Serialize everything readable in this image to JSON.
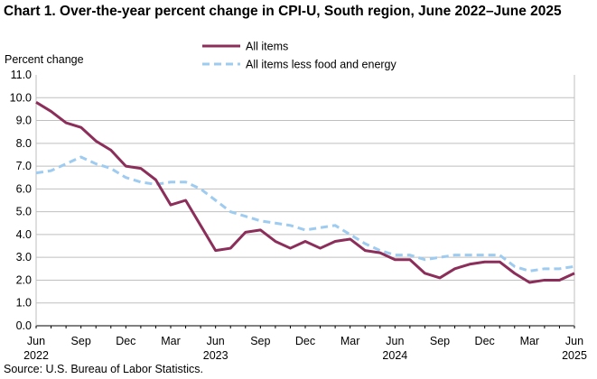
{
  "chart_data": {
    "type": "line",
    "title": "Chart 1. Over-the-year percent change in CPI-U, South region, June 2022–June 2025",
    "ylabel": "Percent change",
    "xlabel": "",
    "ylim": [
      0.0,
      11.0
    ],
    "yticks": [
      "0.0",
      "1.0",
      "2.0",
      "3.0",
      "4.0",
      "5.0",
      "6.0",
      "7.0",
      "8.0",
      "9.0",
      "10.0",
      "11.0"
    ],
    "grid": true,
    "legend_position": "top-center",
    "x": [
      "2022-06",
      "2022-07",
      "2022-08",
      "2022-09",
      "2022-10",
      "2022-11",
      "2022-12",
      "2023-01",
      "2023-02",
      "2023-03",
      "2023-04",
      "2023-05",
      "2023-06",
      "2023-07",
      "2023-08",
      "2023-09",
      "2023-10",
      "2023-11",
      "2023-12",
      "2024-01",
      "2024-02",
      "2024-03",
      "2024-04",
      "2024-05",
      "2024-06",
      "2024-07",
      "2024-08",
      "2024-09",
      "2024-10",
      "2024-11",
      "2024-12",
      "2025-01",
      "2025-02",
      "2025-03",
      "2025-04",
      "2025-05",
      "2025-06"
    ],
    "xtick_labels": [
      {
        "month": "Jun",
        "year": "2022"
      },
      {
        "month": "Sep",
        "year": ""
      },
      {
        "month": "Dec",
        "year": ""
      },
      {
        "month": "Mar",
        "year": ""
      },
      {
        "month": "Jun",
        "year": "2023"
      },
      {
        "month": "Sep",
        "year": ""
      },
      {
        "month": "Dec",
        "year": ""
      },
      {
        "month": "Mar",
        "year": ""
      },
      {
        "month": "Jun",
        "year": "2024"
      },
      {
        "month": "Sep",
        "year": ""
      },
      {
        "month": "Dec",
        "year": ""
      },
      {
        "month": "Mar",
        "year": ""
      },
      {
        "month": "Jun",
        "year": "2025"
      }
    ],
    "series": [
      {
        "name": "All items",
        "color": "#8b2e5a",
        "style": "solid",
        "values": [
          9.8,
          9.4,
          8.9,
          8.7,
          8.1,
          7.7,
          7.0,
          6.9,
          6.4,
          5.3,
          5.5,
          4.4,
          3.3,
          3.4,
          4.1,
          4.2,
          3.7,
          3.4,
          3.7,
          3.4,
          3.7,
          3.8,
          3.3,
          3.2,
          2.9,
          2.9,
          2.3,
          2.1,
          2.5,
          2.7,
          2.8,
          2.8,
          2.3,
          1.9,
          2.0,
          2.0,
          2.3
        ]
      },
      {
        "name": "All items less food and energy",
        "color": "#9ecbf0",
        "style": "dashed",
        "values": [
          6.7,
          6.8,
          7.1,
          7.4,
          7.1,
          6.9,
          6.5,
          6.3,
          6.2,
          6.3,
          6.3,
          6.0,
          5.5,
          5.0,
          4.8,
          4.6,
          4.5,
          4.4,
          4.2,
          4.3,
          4.4,
          4.0,
          3.6,
          3.3,
          3.1,
          3.1,
          2.9,
          3.0,
          3.1,
          3.1,
          3.1,
          3.1,
          2.6,
          2.4,
          2.5,
          2.5,
          2.6
        ]
      }
    ]
  },
  "source": "Source: U.S. Bureau of Labor Statistics."
}
